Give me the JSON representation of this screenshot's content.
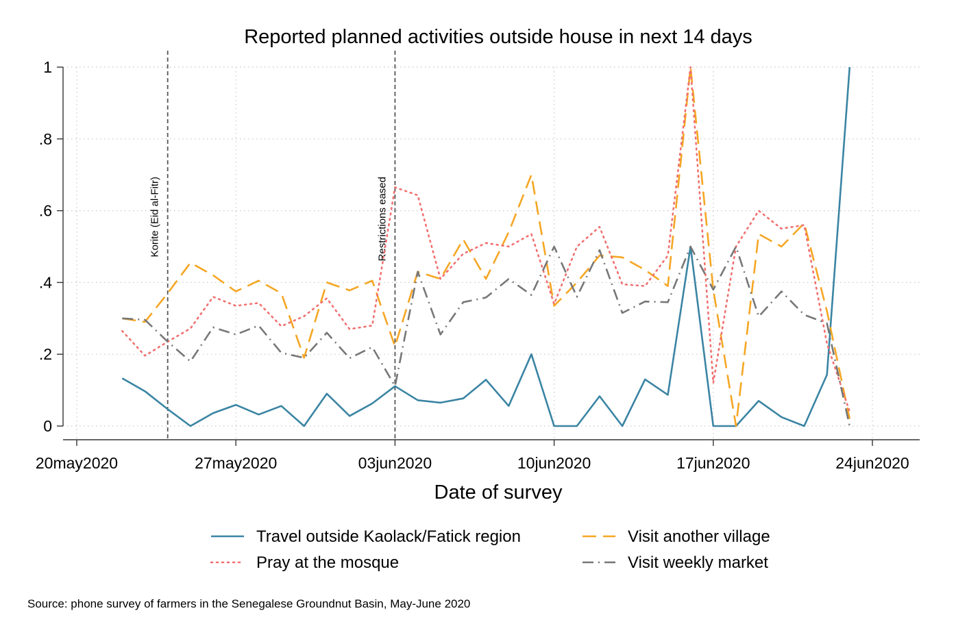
{
  "chart_data": {
    "type": "line",
    "title": "Reported planned activities outside house in next 14 days",
    "xlabel": "Date of survey",
    "ylabel": "",
    "x_axis": {
      "type": "date",
      "range": [
        "2020-05-20",
        "2020-06-26"
      ],
      "ticks": [
        {
          "date": "2020-05-20",
          "label": "20may2020"
        },
        {
          "date": "2020-05-27",
          "label": "27may2020"
        },
        {
          "date": "2020-06-03",
          "label": "03jun2020"
        },
        {
          "date": "2020-06-10",
          "label": "10jun2020"
        },
        {
          "date": "2020-06-17",
          "label": "17jun2020"
        },
        {
          "date": "2020-06-24",
          "label": "24jun2020"
        }
      ]
    },
    "y_axis": {
      "range": [
        0,
        1
      ],
      "ticks": [
        {
          "value": 0,
          "label": "0"
        },
        {
          "value": 0.2,
          "label": ".2"
        },
        {
          "value": 0.4,
          "label": ".4"
        },
        {
          "value": 0.6,
          "label": ".6"
        },
        {
          "value": 0.8,
          "label": ".8"
        },
        {
          "value": 1,
          "label": "1"
        }
      ]
    },
    "grid": true,
    "legend_position": "bottom",
    "x": [
      "2020-05-22",
      "2020-05-23",
      "2020-05-24",
      "2020-05-25",
      "2020-05-26",
      "2020-05-27",
      "2020-05-28",
      "2020-05-29",
      "2020-05-30",
      "2020-05-31",
      "2020-06-01",
      "2020-06-02",
      "2020-06-03",
      "2020-06-04",
      "2020-06-05",
      "2020-06-06",
      "2020-06-07",
      "2020-06-08",
      "2020-06-09",
      "2020-06-10",
      "2020-06-11",
      "2020-06-12",
      "2020-06-13",
      "2020-06-14",
      "2020-06-15",
      "2020-06-16",
      "2020-06-17",
      "2020-06-18",
      "2020-06-19",
      "2020-06-20",
      "2020-06-21",
      "2020-06-22",
      "2020-06-23"
    ],
    "series": [
      {
        "name": "Travel outside Kaolack/Fatick region",
        "color": "#3a84a3",
        "style": "solid",
        "values": [
          0.133,
          0.097,
          0.047,
          0,
          0.036,
          0.059,
          0.032,
          0.056,
          0,
          0.09,
          0.028,
          0.063,
          0.111,
          0.072,
          0.065,
          0.077,
          0.129,
          0.056,
          0.2,
          0,
          0,
          0.083,
          0,
          0.13,
          0.087,
          0.5,
          0,
          0,
          0.07,
          0.025,
          0,
          0.143,
          1
        ]
      },
      {
        "name": "Visit another village",
        "color": "#f5a623",
        "style": "dash",
        "values": [
          0.3,
          0.29,
          0.37,
          0.455,
          0.42,
          0.375,
          0.405,
          0.37,
          0.19,
          0.4,
          0.378,
          0.405,
          0.222,
          0.43,
          0.41,
          0.52,
          0.41,
          0.54,
          0.7,
          0.335,
          0.4,
          0.475,
          0.47,
          0.435,
          0.39,
          1,
          0.38,
          0,
          0.535,
          0.5,
          0.565,
          0.32,
          0.02
        ]
      },
      {
        "name": "Pray at the mosque",
        "color": "#f07070",
        "style": "dot",
        "values": [
          0.265,
          0.196,
          0.235,
          0.272,
          0.36,
          0.335,
          0.343,
          0.278,
          0.306,
          0.356,
          0.27,
          0.28,
          0.665,
          0.643,
          0.41,
          0.48,
          0.51,
          0.5,
          0.535,
          0.34,
          0.5,
          0.555,
          0.395,
          0.39,
          0.475,
          1,
          0.12,
          0.5,
          0.6,
          0.55,
          0.56,
          0.23,
          0.04
        ]
      },
      {
        "name": "Visit weekly market",
        "color": "#777777",
        "style": "dashdot",
        "values": [
          0.3,
          0.296,
          0.235,
          0.18,
          0.275,
          0.255,
          0.28,
          0.204,
          0.19,
          0.26,
          0.189,
          0.22,
          0.111,
          0.43,
          0.255,
          0.345,
          0.358,
          0.41,
          0.365,
          0.5,
          0.36,
          0.49,
          0.315,
          0.347,
          0.345,
          0.5,
          0.38,
          0.5,
          0.305,
          0.375,
          0.31,
          0.286,
          0
        ]
      }
    ],
    "annotations": [
      {
        "date": "2020-05-24",
        "text": "Korite (Eid al-Fitr)"
      },
      {
        "date": "2020-06-03",
        "text": "Restrictions eased"
      }
    ],
    "source_note": "Source: phone survey of farmers in the Senegalese Groundnut Basin, May-June 2020"
  }
}
